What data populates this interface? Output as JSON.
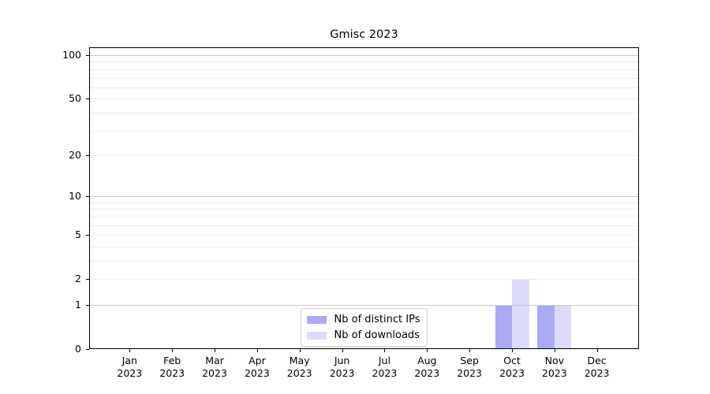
{
  "chart_data": {
    "type": "bar",
    "title": "Gmisc 2023",
    "categories": [
      "Jan 2023",
      "Feb 2023",
      "Mar 2023",
      "Apr 2023",
      "May 2023",
      "Jun 2023",
      "Jul 2023",
      "Aug 2023",
      "Sep 2023",
      "Oct 2023",
      "Nov 2023",
      "Dec 2023"
    ],
    "category_month_labels": [
      "Jan",
      "Feb",
      "Mar",
      "Apr",
      "May",
      "Jun",
      "Jul",
      "Aug",
      "Sep",
      "Oct",
      "Nov",
      "Dec"
    ],
    "category_year_label": "2023",
    "series": [
      {
        "name": "Nb of distinct IPs",
        "color": "#a9abf4",
        "values": [
          0,
          0,
          0,
          0,
          0,
          0,
          0,
          0,
          0,
          1,
          1,
          0
        ]
      },
      {
        "name": "Nb of downloads",
        "color": "#dbdbf9",
        "values": [
          0,
          0,
          0,
          0,
          0,
          0,
          0,
          0,
          0,
          2,
          1,
          0
        ]
      }
    ],
    "xlabel": "",
    "ylabel": "",
    "y_axis": {
      "scale": "log1p",
      "tick_values": [
        0,
        1,
        2,
        5,
        10,
        20,
        50,
        100
      ],
      "tick_labels": [
        "0",
        "1",
        "2",
        "5",
        "10",
        "20",
        "50",
        "100"
      ],
      "ylim": [
        0,
        113
      ],
      "major_grid_values": [
        1,
        10,
        100
      ],
      "minor_grid_values": [
        2,
        3,
        4,
        5,
        6,
        7,
        8,
        9,
        20,
        30,
        40,
        50,
        60,
        70,
        80,
        90
      ]
    },
    "legend": {
      "position": "lower center"
    },
    "grid": true
  },
  "colors": {
    "background": "#ffffff",
    "spine": "#000000",
    "major_grid": "#c8c8c8",
    "minor_grid": "#ececec",
    "text": "#000000",
    "legend_border": "#cccccc"
  }
}
